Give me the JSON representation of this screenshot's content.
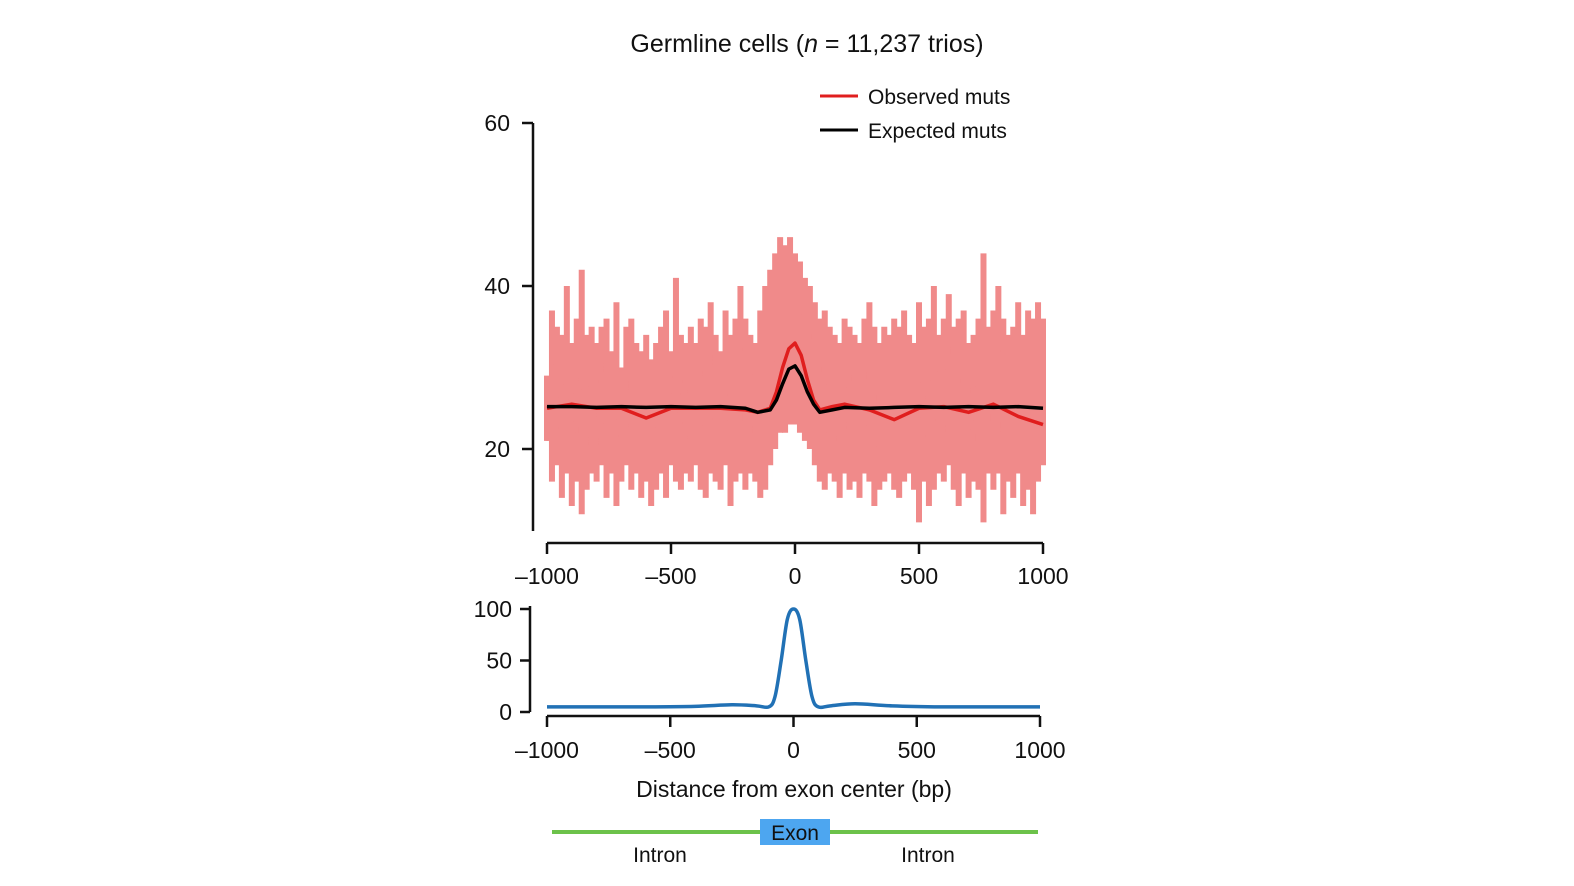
{
  "chart_data": [
    {
      "type": "line",
      "title_main": "Germline cells (",
      "title_italic": "n",
      "title_rest": " = 11,237 trios)",
      "xlim": [
        -1000,
        1000
      ],
      "ylim": [
        10,
        60
      ],
      "xticks": [
        -1000,
        -500,
        0,
        500,
        1000
      ],
      "xtick_labels": [
        "–1000",
        "–500",
        "0",
        "500",
        "1000"
      ],
      "yticks": [
        20,
        40,
        60
      ],
      "ytick_labels": [
        "20",
        "40",
        "60"
      ],
      "grid": false,
      "legend_placement": "top-right",
      "colors": {
        "observed_raw": "#f08a8a",
        "observed": "#e01e1e",
        "expected": "#000000"
      },
      "observed_raw": {
        "x_start": -1000,
        "x_step": 20,
        "high": [
          29,
          37,
          35,
          34,
          40,
          33,
          36,
          42,
          34,
          35,
          33,
          35,
          36,
          32,
          38,
          30,
          35,
          36,
          33,
          32,
          34,
          31,
          33,
          35,
          37,
          32,
          41,
          34,
          33,
          35,
          33,
          36,
          35,
          38,
          34,
          32,
          37,
          34,
          36,
          40,
          36,
          34,
          33,
          37,
          40,
          42,
          44,
          46,
          45,
          46,
          44,
          43,
          41,
          40,
          38,
          36,
          37,
          35,
          34,
          33,
          36,
          35,
          34,
          33,
          36,
          38,
          35,
          33,
          35,
          34,
          36,
          35,
          37,
          34,
          33,
          38,
          35,
          36,
          40,
          34,
          36,
          39,
          35,
          36,
          37,
          33,
          34,
          36,
          44,
          35,
          37,
          40,
          36,
          34,
          35,
          38,
          34,
          37,
          36,
          38,
          36
        ],
        "low": [
          21,
          16,
          18,
          14,
          17,
          13,
          16,
          12,
          15,
          17,
          16,
          18,
          14,
          17,
          13,
          16,
          18,
          15,
          17,
          14,
          16,
          13,
          15,
          17,
          14,
          18,
          16,
          15,
          17,
          16,
          18,
          15,
          14,
          17,
          16,
          15,
          18,
          13,
          16,
          17,
          15,
          17,
          16,
          14,
          15,
          18,
          20,
          22,
          22,
          23,
          23,
          22,
          21,
          20,
          18,
          16,
          15,
          17,
          16,
          14,
          17,
          15,
          16,
          14,
          17,
          16,
          13,
          15,
          16,
          17,
          15,
          14,
          16,
          17,
          15,
          11,
          16,
          13,
          15,
          17,
          16,
          18,
          15,
          13,
          17,
          14,
          16,
          15,
          11,
          17,
          15,
          17,
          12,
          16,
          14,
          17,
          13,
          15,
          12,
          16,
          18
        ]
      },
      "x": [
        -1000,
        -900,
        -800,
        -700,
        -600,
        -500,
        -400,
        -300,
        -200,
        -150,
        -100,
        -75,
        -50,
        -25,
        0,
        25,
        50,
        75,
        100,
        150,
        200,
        300,
        400,
        500,
        600,
        700,
        800,
        900,
        1000
      ],
      "series": [
        {
          "name": "Observed muts",
          "values": [
            25,
            25.5,
            25,
            25,
            23.8,
            25,
            25,
            25,
            24.8,
            24.5,
            25,
            27,
            30,
            32.3,
            33,
            31.5,
            28.5,
            26,
            24.8,
            25.2,
            25.5,
            24.8,
            23.6,
            25,
            25.2,
            24.5,
            25.5,
            24,
            23
          ]
        },
        {
          "name": "Expected muts",
          "values": [
            25.2,
            25.2,
            25.1,
            25.2,
            25.1,
            25.2,
            25.1,
            25.2,
            25,
            24.5,
            24.8,
            26,
            28,
            29.8,
            30.2,
            29,
            27,
            25.5,
            24.5,
            24.8,
            25.1,
            25,
            25.1,
            25.2,
            25.1,
            25.2,
            25.1,
            25.2,
            25
          ]
        }
      ]
    },
    {
      "type": "line",
      "xlim": [
        -1000,
        1000
      ],
      "ylim": [
        0,
        100
      ],
      "xticks": [
        -1000,
        -500,
        0,
        500,
        1000
      ],
      "xtick_labels": [
        "–1000",
        "–500",
        "0",
        "500",
        "1000"
      ],
      "yticks": [
        0,
        50,
        100
      ],
      "ytick_labels": [
        "0",
        "50",
        "100"
      ],
      "xlabel": "Distance from exon center (bp)",
      "grid": false,
      "colors": {
        "line": "#2171b5"
      },
      "x": [
        -1000,
        -800,
        -600,
        -400,
        -250,
        -150,
        -100,
        -75,
        -50,
        -25,
        0,
        25,
        50,
        75,
        100,
        150,
        250,
        400,
        600,
        800,
        1000
      ],
      "values": [
        5,
        5,
        5,
        5.5,
        7,
        6,
        5,
        15,
        50,
        90,
        100,
        90,
        50,
        15,
        5,
        6,
        8,
        6,
        5,
        5,
        5
      ]
    }
  ],
  "gene_diagram": {
    "exon_label": "Exon",
    "intron_left": "Intron",
    "intron_right": "Intron",
    "colors": {
      "intron": "#6cc24a",
      "exon": "#4da6f0"
    }
  }
}
